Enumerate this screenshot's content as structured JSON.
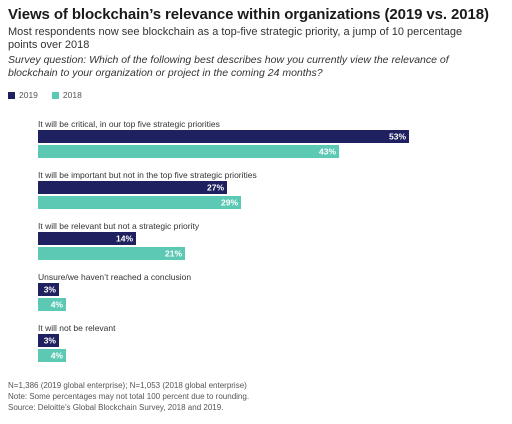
{
  "header": {
    "title": "Views of blockchain’s relevance within organizations (2019 vs. 2018)",
    "subtitle": "Most respondents now see blockchain as a top-five strategic priority, a jump of 10 percentage points over 2018",
    "question": "Survey question: Which of the following best describes how you currently view the relevance of blockchain to your organization or project in the coming 24 months?"
  },
  "colors": {
    "y2019": "#1f2060",
    "y2018": "#5cc9b5"
  },
  "legend": [
    {
      "label": "2019",
      "color": "#1f2060"
    },
    {
      "label": "2018",
      "color": "#5cc9b5"
    }
  ],
  "chart_data": {
    "type": "bar",
    "orientation": "horizontal",
    "categories": [
      "It will be critical, in our top five strategic priorities",
      "It will be important but not in the top five strategic priorities",
      "It will be relevant but not a strategic priority",
      "Unsure/we haven’t reached a conclusion",
      "It will not be relevant"
    ],
    "series": [
      {
        "name": "2019",
        "values": [
          53,
          27,
          14,
          3,
          3
        ],
        "labels": [
          "53%",
          "27%",
          "14%",
          "3%",
          "3%"
        ],
        "color": "#1f2060"
      },
      {
        "name": "2018",
        "values": [
          43,
          29,
          21,
          4,
          4
        ],
        "labels": [
          "43%",
          "29%",
          "21%",
          "4%",
          "4%"
        ],
        "color": "#5cc9b5"
      }
    ],
    "xlim": [
      0,
      60
    ],
    "grid": false,
    "legend_position": "top-left"
  },
  "footnotes": [
    "N=1,386 (2019 global enterprise); N=1,053 (2018 global enterprise)",
    "Note: Some percentages may not total 100 percent due to rounding.",
    "Source: Deloitte’s Global Blockchain Survey, 2018 and 2019."
  ]
}
